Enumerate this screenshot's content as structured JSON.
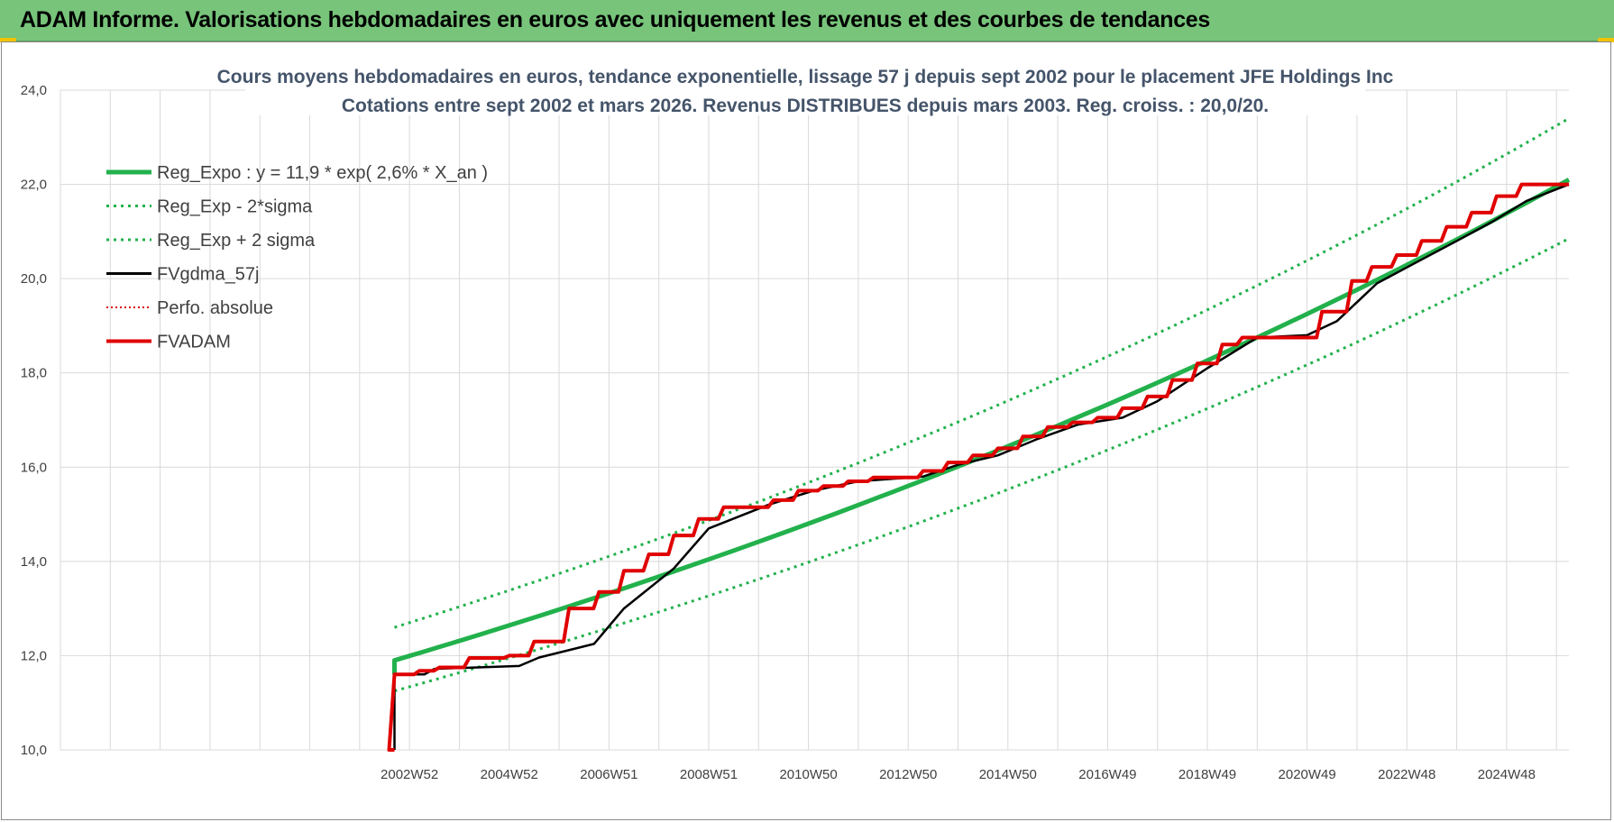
{
  "header": {
    "title": "ADAM Informe. Valorisations hebdomadaires en euros avec uniquement les revenus et des courbes de tendances"
  },
  "colors": {
    "header_bg": "#77c47a",
    "green": "#22b14c",
    "red": "#e00000",
    "black": "#000000",
    "grid": "#d9d9d9",
    "title": "#44546a"
  },
  "chart_data": {
    "type": "line",
    "title": "Cours moyens hebdomadaires en euros, tendance exponentielle, lissage 57 j depuis sept 2002 pour le placement JFE Holdings Inc",
    "subtitle": "Cotations entre sept 2002 et mars 2026. Revenus DISTRIBUES depuis mars 2003. Reg. croiss. : 20,0/20.",
    "xlabel": "",
    "ylabel": "",
    "ylim": [
      10,
      24
    ],
    "y_ticks": [
      "10,0",
      "12,0",
      "14,0",
      "16,0",
      "18,0",
      "20,0",
      "22,0",
      "24,0"
    ],
    "x_tick_labels": [
      "2002W52",
      "2004W52",
      "2006W51",
      "2008W51",
      "2010W50",
      "2012W50",
      "2014W50",
      "2016W49",
      "2018W49",
      "2020W49",
      "2022W48",
      "2024W48"
    ],
    "x_ticks_years": [
      2003,
      2005,
      2007,
      2009,
      2011,
      2013,
      2015,
      2017,
      2019,
      2021,
      2023,
      2025
    ],
    "xlim_years": [
      1996.0,
      2026.25
    ],
    "grid": true,
    "legend_position": "top-left",
    "series": [
      {
        "name": "Reg_Expo : y = 11,9 * exp( 2,6% *  X_an )",
        "style": "solid-thick",
        "color": "#22b14c",
        "x": [
          2002.7,
          2026.25
        ],
        "y": [
          11.9,
          22.1
        ]
      },
      {
        "name": "Reg_Exp - 2*sigma",
        "style": "dotted",
        "color": "#22b14c",
        "x": [
          2002.7,
          2026.25
        ],
        "y": [
          11.25,
          20.85
        ]
      },
      {
        "name": "Reg_Exp + 2 sigma",
        "style": "dotted",
        "color": "#22b14c",
        "x": [
          2002.7,
          2026.25
        ],
        "y": [
          12.6,
          23.4
        ]
      },
      {
        "name": "FVgdma_57j",
        "style": "solid",
        "color": "#000000",
        "x": [
          2002.7,
          2002.7,
          2003.3,
          2003.5,
          2005.2,
          2005.6,
          2006.7,
          2007.3,
          2008.3,
          2009.0,
          2010.2,
          2011.1,
          2012.0,
          2013.3,
          2014.0,
          2014.8,
          2015.6,
          2016.4,
          2017.3,
          2018.0,
          2019.0,
          2020.0,
          2021.0,
          2021.6,
          2022.4,
          2023.2,
          2024.0,
          2024.7,
          2025.4,
          2026.25
        ],
        "y": [
          10.0,
          11.6,
          11.6,
          11.72,
          11.78,
          11.96,
          12.25,
          13.0,
          13.85,
          14.7,
          15.2,
          15.5,
          15.7,
          15.8,
          16.05,
          16.25,
          16.6,
          16.9,
          17.05,
          17.4,
          18.1,
          18.75,
          18.8,
          19.1,
          19.9,
          20.35,
          20.8,
          21.2,
          21.65,
          22.0
        ]
      },
      {
        "name": "Perfo. absolue",
        "style": "dotted",
        "color": "#e00000",
        "x": [],
        "y": []
      },
      {
        "name": "FVADAM",
        "style": "step-thick",
        "color": "#e00000",
        "x": [
          2002.7,
          2002.7,
          2003.2,
          2003.6,
          2004.2,
          2005.0,
          2005.5,
          2006.2,
          2006.8,
          2007.3,
          2007.8,
          2008.3,
          2008.8,
          2009.3,
          2009.8,
          2010.3,
          2010.8,
          2011.3,
          2011.8,
          2012.3,
          2013.3,
          2013.8,
          2014.3,
          2014.8,
          2015.3,
          2015.8,
          2016.3,
          2016.8,
          2017.3,
          2017.8,
          2018.3,
          2018.8,
          2019.3,
          2019.7,
          2021.0,
          2021.3,
          2021.9,
          2022.3,
          2022.8,
          2023.3,
          2023.8,
          2024.3,
          2024.8,
          2025.3,
          2025.8,
          2026.25
        ],
        "y": [
          10.0,
          11.6,
          11.68,
          11.75,
          11.95,
          12.0,
          12.3,
          13.0,
          13.35,
          13.8,
          14.15,
          14.55,
          14.9,
          15.15,
          15.15,
          15.3,
          15.5,
          15.6,
          15.7,
          15.78,
          15.92,
          16.1,
          16.25,
          16.4,
          16.65,
          16.85,
          16.95,
          17.05,
          17.25,
          17.5,
          17.85,
          18.2,
          18.6,
          18.75,
          18.75,
          19.3,
          19.95,
          20.25,
          20.5,
          20.8,
          21.1,
          21.4,
          21.75,
          22.0,
          22.0,
          22.0
        ]
      }
    ]
  }
}
